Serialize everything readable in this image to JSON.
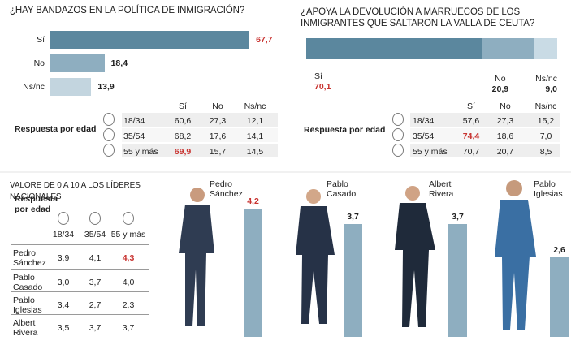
{
  "chart_data": [
    {
      "type": "hbar",
      "title": "¿HAY BANDAZOS EN LA POLÍTICA DE INMIGRACIÓN?",
      "categories": [
        "Sí",
        "No",
        "Ns/nc"
      ],
      "values": [
        67.7,
        18.4,
        13.9
      ],
      "value_labels": [
        "67,7",
        "18,4",
        "13,9"
      ],
      "colors": [
        "#5b879e",
        "#8eaec0",
        "#c3d5df"
      ],
      "value_label_colors": [
        "#c8322f",
        "#222222",
        "#222222"
      ],
      "xlim": [
        0,
        100
      ]
    },
    {
      "type": "stacked",
      "title": "¿APOYA LA DEVOLUCIÓN A MARRUECOS DE LOS INMIGRANTES QUE SALTARON LA VALLA DE CEUTA?",
      "categories": [
        "Sí",
        "No",
        "Ns/nc"
      ],
      "values": [
        70.1,
        20.9,
        9.0
      ],
      "value_labels": [
        "70,1",
        "20,9",
        "9,0"
      ],
      "colors": [
        "#5b879e",
        "#8eaec0",
        "#c9dbe5"
      ],
      "value_label_colors": [
        "#c8322f",
        "#222222",
        "#222222"
      ],
      "xlim": [
        0,
        100
      ]
    },
    {
      "type": "column",
      "title": "VALORE DE 0 A 10 A LOS LÍDERES NACIONALES",
      "categories": [
        "Pedro Sánchez",
        "Pablo Casado",
        "Albert Rivera",
        "Pablo Iglesias"
      ],
      "values": [
        4.2,
        3.7,
        3.7,
        2.6
      ],
      "value_labels": [
        "4,2",
        "3,7",
        "3,7",
        "2,6"
      ],
      "color": "#8eaec0",
      "value_label_colors": [
        "#c8322f",
        "#222222",
        "#222222",
        "#222222"
      ],
      "ylim": [
        0,
        10
      ]
    }
  ],
  "tables": [
    {
      "label": "Respuesta por edad",
      "columns": [
        "Sí",
        "No",
        "Ns/nc"
      ],
      "rows": [
        [
          "18/34",
          "60,6",
          "27,3",
          "12,1"
        ],
        [
          "35/54",
          "68,2",
          "17,6",
          "14,1"
        ],
        [
          "55 y más",
          "69,9",
          "15,7",
          "14,5"
        ]
      ]
    },
    {
      "label": "Respuesta por edad",
      "columns": [
        "Sí",
        "No",
        "Ns/nc"
      ],
      "rows": [
        [
          "18/34",
          "57,6",
          "27,3",
          "15,2"
        ],
        [
          "35/54",
          "74,4",
          "18,6",
          "7,0"
        ],
        [
          "55 y más",
          "70,7",
          "20,7",
          "8,5"
        ]
      ]
    },
    {
      "label": "Respuesta por edad",
      "columns": [
        "18/34",
        "35/54",
        "55 y más"
      ],
      "rows": [
        [
          "Pedro Sánchez",
          "3,9",
          "4,1",
          "4,3"
        ],
        [
          "Pablo Casado",
          "3,0",
          "3,7",
          "4,0"
        ],
        [
          "Pablo Iglesias",
          "3,4",
          "2,7",
          "2,3"
        ],
        [
          "Albert Rivera",
          "3,5",
          "3,7",
          "3,7"
        ]
      ]
    }
  ]
}
